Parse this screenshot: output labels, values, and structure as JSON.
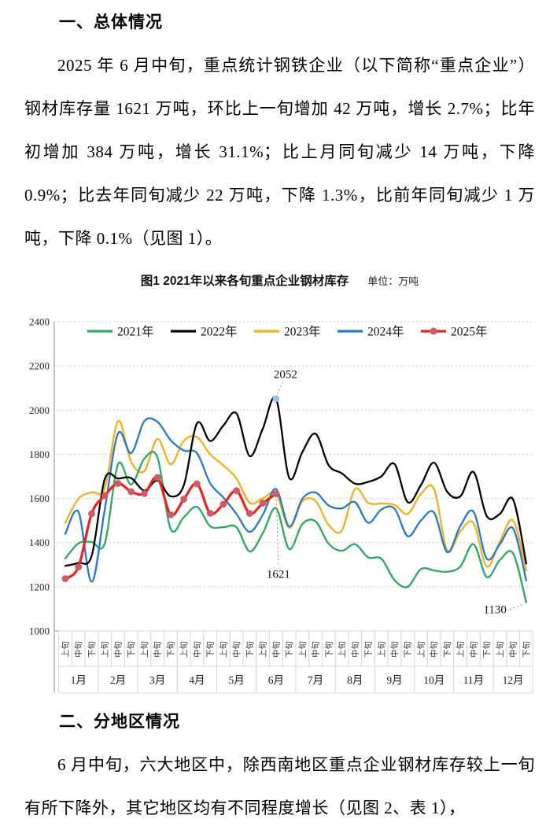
{
  "doc": {
    "section1": {
      "heading": "一、总体情况",
      "paragraph": "2025 年 6 月中旬，重点统计钢铁企业（以下简称“重点企业”）钢材库存量 1621 万吨，环比上一旬增加 42 万吨，增长 2.7%；比年初增加 384 万吨，增长 31.1%；比上月同旬减少 14 万吨，下降 0.9%；比去年同旬减少 22 万吨，下降 1.3%，比前年同旬减少 1 万吨，下降 0.1%（见图 1）。"
    },
    "section2": {
      "heading": "二、分地区情况",
      "paragraph": "6 月中旬，六大地区中，除西南地区重点企业钢材库存较上一旬有所下降外，其它地区均有不同程度增长（见图 2、表 1），"
    }
  },
  "chart": {
    "title": "图1  2021年以来各旬重点企业钢材库存",
    "unit_label": "单位：万吨"
  },
  "chart_data": {
    "type": "line",
    "title": "图1 2021年以来各旬重点企业钢材库存",
    "unit": "万吨",
    "ylim": [
      1000,
      2400
    ],
    "ytick_step": 200,
    "grid": "horizontal-dotted",
    "legend_position": "top-inside",
    "months": [
      "1月",
      "2月",
      "3月",
      "4月",
      "5月",
      "6月",
      "7月",
      "8月",
      "9月",
      "10月",
      "11月",
      "12月"
    ],
    "periods": [
      "上旬",
      "中旬",
      "下旬"
    ],
    "categories": [
      "1月上旬",
      "1月中旬",
      "1月下旬",
      "2月上旬",
      "2月中旬",
      "2月下旬",
      "3月上旬",
      "3月中旬",
      "3月下旬",
      "4月上旬",
      "4月中旬",
      "4月下旬",
      "5月上旬",
      "5月中旬",
      "5月下旬",
      "6月上旬",
      "6月中旬",
      "6月下旬",
      "7月上旬",
      "7月中旬",
      "7月下旬",
      "8月上旬",
      "8月中旬",
      "8月下旬",
      "9月上旬",
      "9月中旬",
      "9月下旬",
      "10月上旬",
      "10月中旬",
      "10月下旬",
      "11月上旬",
      "11月中旬",
      "11月下旬",
      "12月上旬",
      "12月中旬",
      "12月下旬"
    ],
    "series": [
      {
        "name": "2021年",
        "color": "#2EA75F",
        "values": [
          1328,
          1397,
          1403,
          1397,
          1755,
          1663,
          1780,
          1785,
          1462,
          1515,
          1562,
          1474,
          1470,
          1470,
          1360,
          1443,
          1556,
          1371,
          1484,
          1496,
          1395,
          1363,
          1393,
          1333,
          1327,
          1230,
          1200,
          1280,
          1274,
          1268,
          1292,
          1393,
          1244,
          1321,
          1351,
          1130
        ]
      },
      {
        "name": "2022年",
        "color": "#000000",
        "values": [
          1295,
          1308,
          1340,
          1688,
          1690,
          1692,
          1636,
          1681,
          1610,
          1660,
          1940,
          1860,
          1930,
          1985,
          1792,
          1917,
          2052,
          1694,
          1810,
          1893,
          1750,
          1714,
          1667,
          1675,
          1700,
          1756,
          1583,
          1660,
          1762,
          1630,
          1610,
          1720,
          1520,
          1530,
          1595,
          1305
        ]
      },
      {
        "name": "2023年",
        "color": "#EFB120",
        "values": [
          1490,
          1599,
          1628,
          1646,
          1950,
          1766,
          1724,
          1870,
          1754,
          1861,
          1878,
          1800,
          1750,
          1690,
          1580,
          1600,
          1622,
          1467,
          1586,
          1589,
          1480,
          1455,
          1643,
          1580,
          1577,
          1571,
          1530,
          1620,
          1643,
          1365,
          1452,
          1488,
          1292,
          1405,
          1500,
          1274
        ]
      },
      {
        "name": "2024年",
        "color": "#2878C8",
        "values": [
          1440,
          1539,
          1223,
          1551,
          1894,
          1805,
          1950,
          1947,
          1864,
          1817,
          1805,
          1669,
          1604,
          1530,
          1449,
          1526,
          1643,
          1473,
          1598,
          1627,
          1568,
          1555,
          1583,
          1490,
          1550,
          1554,
          1429,
          1500,
          1536,
          1357,
          1476,
          1540,
          1327,
          1393,
          1464,
          1229
        ]
      },
      {
        "name": "2025年",
        "color": "#E8251D",
        "marker": true,
        "marker_color": "#CD5C68",
        "values": [
          1237,
          1290,
          1531,
          1613,
          1668,
          1631,
          1622,
          1695,
          1526,
          1597,
          1666,
          1533,
          1574,
          1635,
          1532,
          1579,
          1621
        ]
      }
    ],
    "annotations": [
      {
        "label": "2052",
        "series": "2022年",
        "index": 16,
        "placement": "above",
        "marker_color": "#9DC3E6"
      },
      {
        "label": "1621",
        "series": "2025年",
        "index": 16,
        "placement": "below"
      },
      {
        "label": "1130",
        "series": "2021年",
        "index": 35,
        "placement": "left"
      }
    ]
  }
}
